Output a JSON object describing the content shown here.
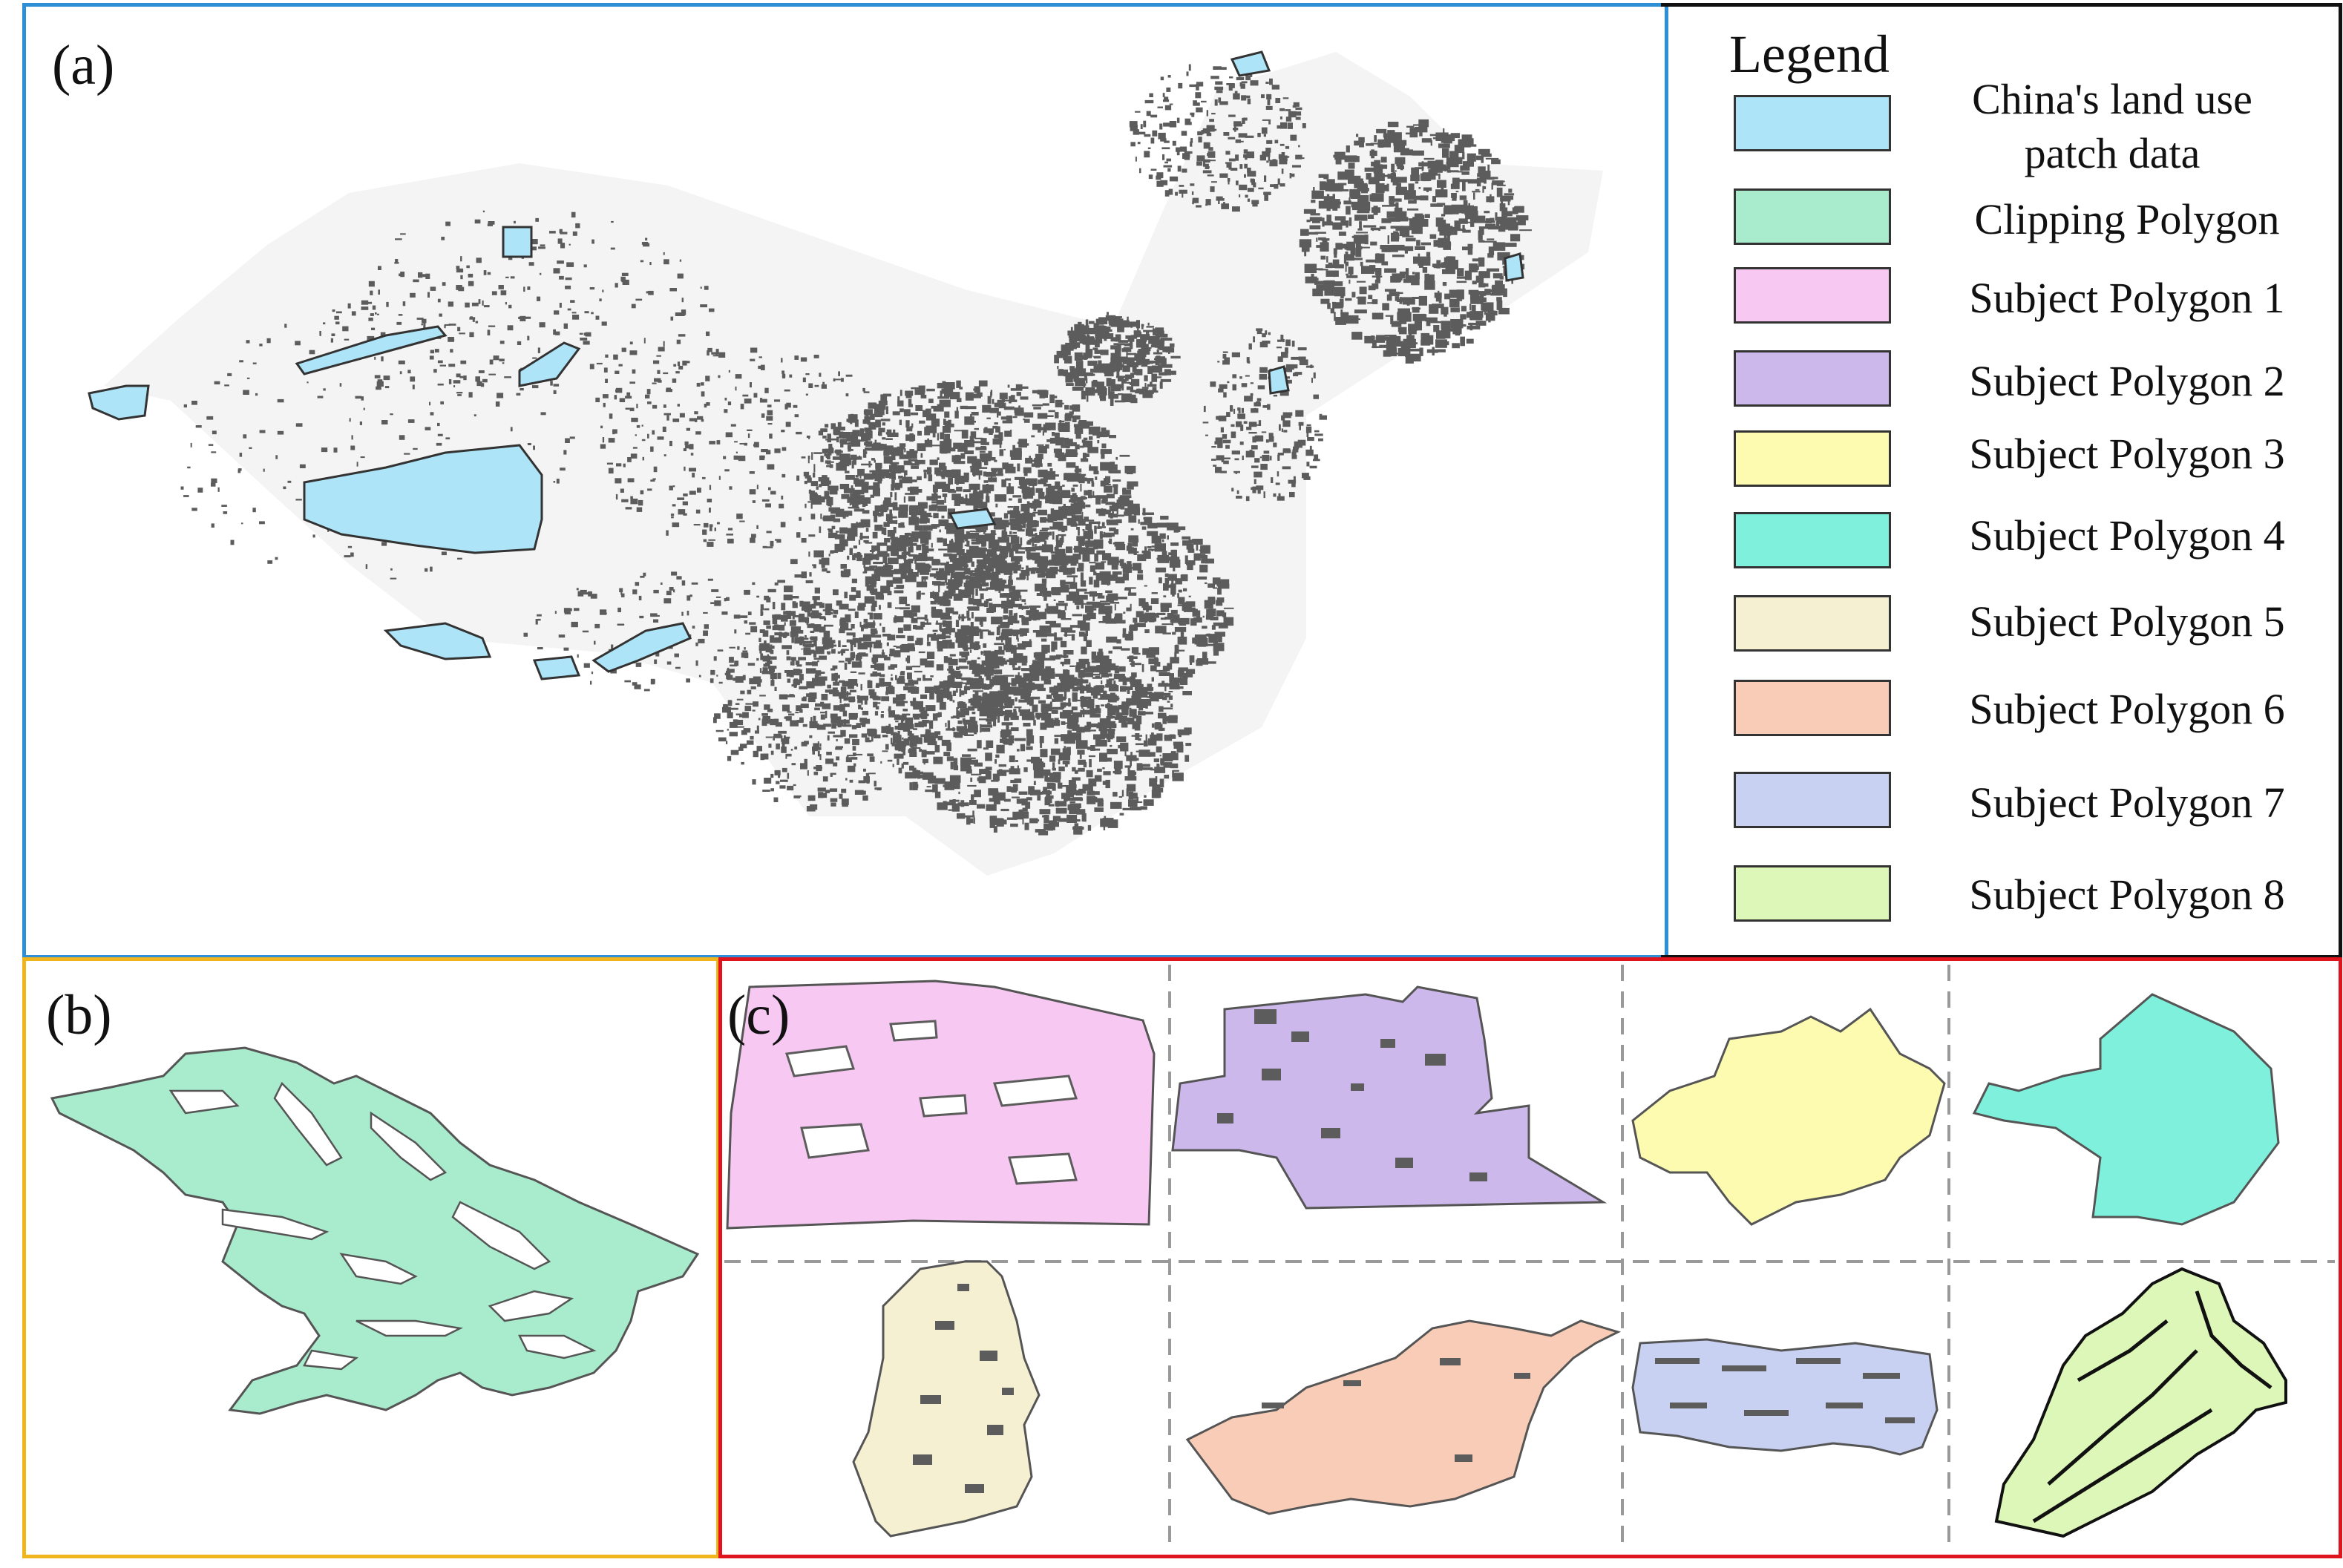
{
  "panels": {
    "a": {
      "label": "(a)"
    },
    "b": {
      "label": "(b)"
    },
    "c": {
      "label": "(c)"
    }
  },
  "legend": {
    "title": "Legend",
    "items": [
      {
        "label": "China's land use patch data",
        "color": "#aee4f7"
      },
      {
        "label": "Clipping Polygon",
        "color": "#a8eccd"
      },
      {
        "label": "Subject Polygon 1",
        "color": "#f7c8f2"
      },
      {
        "label": "Subject Polygon 2",
        "color": "#cdb8ec"
      },
      {
        "label": "Subject Polygon 3",
        "color": "#fcfbb0"
      },
      {
        "label": "Subject Polygon 4",
        "color": "#7ef0dc"
      },
      {
        "label": "Subject Polygon 5",
        "color": "#f6f0d3"
      },
      {
        "label": "Subject Polygon 6",
        "color": "#f8ccb6"
      },
      {
        "label": "Subject Polygon 7",
        "color": "#c8d1f2"
      },
      {
        "label": "Subject Polygon 8",
        "color": "#dcf7b8"
      }
    ]
  },
  "colors": {
    "patch_gray": "#5c5c5c",
    "outline": "#555555",
    "panel_a_border": "#2e8fd6",
    "panel_b_border": "#f0b41c",
    "panel_c_border": "#e0141c"
  }
}
